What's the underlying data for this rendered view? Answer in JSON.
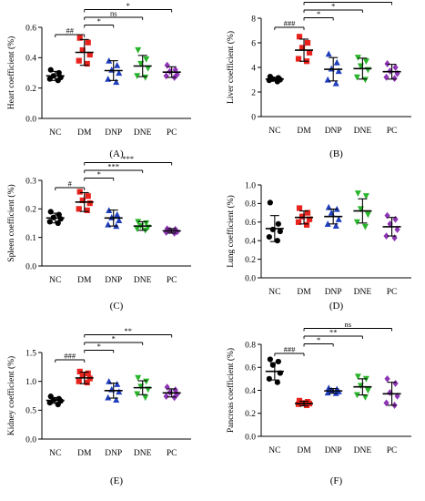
{
  "chart_data": [
    {
      "type": "scatter",
      "panel_label": "(A)",
      "ylabel": "Heart coefficient (%)",
      "ylim": [
        0.0,
        0.6
      ],
      "yticks": [
        "0.0",
        "0.2",
        "0.4",
        "0.6"
      ],
      "ytick_values": [
        0.0,
        0.2,
        0.4,
        0.6
      ],
      "categories": [
        "NC",
        "DM",
        "DNP",
        "DNE",
        "PC"
      ],
      "series": [
        {
          "category": "NC",
          "color": "#000000",
          "marker": "circle",
          "mean": 0.28,
          "sd": 0.03,
          "points": [
            0.32,
            0.3,
            0.28,
            0.27,
            0.26,
            0.25
          ]
        },
        {
          "category": "DM",
          "color": "#e8231d",
          "marker": "square",
          "mean": 0.435,
          "sd": 0.085,
          "points": [
            0.53,
            0.5,
            0.45,
            0.42,
            0.38,
            0.36
          ]
        },
        {
          "category": "DNP",
          "color": "#1f3fbf",
          "marker": "triangle-up",
          "mean": 0.315,
          "sd": 0.065,
          "points": [
            0.38,
            0.35,
            0.32,
            0.3,
            0.26,
            0.24
          ]
        },
        {
          "category": "DNE",
          "color": "#28b52a",
          "marker": "triangle-down",
          "mean": 0.345,
          "sd": 0.07,
          "points": [
            0.45,
            0.39,
            0.36,
            0.33,
            0.28,
            0.27
          ]
        },
        {
          "category": "PC",
          "color": "#8e35b5",
          "marker": "diamond",
          "mean": 0.305,
          "sd": 0.035,
          "points": [
            0.35,
            0.32,
            0.31,
            0.29,
            0.28,
            0.27
          ]
        }
      ],
      "significance": [
        {
          "from": "NC",
          "to": "DM",
          "label": "##"
        },
        {
          "from": "DM",
          "to": "DNP",
          "label": "*"
        },
        {
          "from": "DM",
          "to": "DNE",
          "label": "ns"
        },
        {
          "from": "DM",
          "to": "PC",
          "label": "*"
        }
      ]
    },
    {
      "type": "scatter",
      "panel_label": "(B)",
      "ylabel": "Liver coefficient (%)",
      "ylim": [
        0,
        8
      ],
      "yticks": [
        "0",
        "2",
        "4",
        "6",
        "8"
      ],
      "ytick_values": [
        0,
        2,
        4,
        6,
        8
      ],
      "categories": [
        "NC",
        "DM",
        "DNP",
        "DNE",
        "PC"
      ],
      "series": [
        {
          "category": "NC",
          "color": "#000000",
          "marker": "circle",
          "mean": 3.05,
          "sd": 0.15,
          "points": [
            3.25,
            3.15,
            3.05,
            3.0,
            2.95,
            2.85
          ]
        },
        {
          "category": "DM",
          "color": "#e8231d",
          "marker": "square",
          "mean": 5.4,
          "sd": 0.9,
          "points": [
            6.5,
            6.0,
            5.6,
            5.2,
            4.7,
            4.5
          ]
        },
        {
          "category": "DNP",
          "color": "#1f3fbf",
          "marker": "triangle-up",
          "mean": 3.85,
          "sd": 0.95,
          "points": [
            5.1,
            4.4,
            3.9,
            3.7,
            3.0,
            2.7
          ]
        },
        {
          "category": "DNE",
          "color": "#28b52a",
          "marker": "triangle-down",
          "mean": 3.9,
          "sd": 0.85,
          "points": [
            4.8,
            4.5,
            4.1,
            3.8,
            3.2,
            3.0
          ]
        },
        {
          "category": "PC",
          "color": "#8e35b5",
          "marker": "diamond",
          "mean": 3.65,
          "sd": 0.6,
          "points": [
            4.3,
            4.0,
            3.7,
            3.5,
            3.2,
            3.1
          ]
        }
      ],
      "significance": [
        {
          "from": "NC",
          "to": "DM",
          "label": "###"
        },
        {
          "from": "DM",
          "to": "DNP",
          "label": "*"
        },
        {
          "from": "DM",
          "to": "DNE",
          "label": "*"
        },
        {
          "from": "DM",
          "to": "PC",
          "label": "**"
        }
      ]
    },
    {
      "type": "scatter",
      "panel_label": "(C)",
      "ylabel": "Spleen coefficient (%)",
      "ylim": [
        0.0,
        0.3
      ],
      "yticks": [
        "0.0",
        "0.1",
        "0.2",
        "0.3"
      ],
      "ytick_values": [
        0.0,
        0.1,
        0.2,
        0.3
      ],
      "categories": [
        "NC",
        "DM",
        "DNP",
        "DNE",
        "PC"
      ],
      "series": [
        {
          "category": "NC",
          "color": "#000000",
          "marker": "circle",
          "mean": 0.168,
          "sd": 0.017,
          "points": [
            0.19,
            0.18,
            0.17,
            0.165,
            0.155,
            0.15
          ]
        },
        {
          "category": "DM",
          "color": "#e8231d",
          "marker": "square",
          "mean": 0.224,
          "sd": 0.033,
          "points": [
            0.26,
            0.245,
            0.23,
            0.22,
            0.2,
            0.195
          ]
        },
        {
          "category": "DNP",
          "color": "#1f3fbf",
          "marker": "triangle-up",
          "mean": 0.168,
          "sd": 0.028,
          "points": [
            0.195,
            0.18,
            0.17,
            0.16,
            0.145,
            0.14
          ]
        },
        {
          "category": "DNE",
          "color": "#28b52a",
          "marker": "triangle-down",
          "mean": 0.14,
          "sd": 0.015,
          "points": [
            0.155,
            0.15,
            0.14,
            0.135,
            0.13,
            0.125
          ]
        },
        {
          "category": "PC",
          "color": "#8e35b5",
          "marker": "diamond",
          "mean": 0.123,
          "sd": 0.008,
          "points": [
            0.13,
            0.128,
            0.125,
            0.12,
            0.118,
            0.115
          ]
        }
      ],
      "significance": [
        {
          "from": "NC",
          "to": "DM",
          "label": "#"
        },
        {
          "from": "DM",
          "to": "DNP",
          "label": "*"
        },
        {
          "from": "DM",
          "to": "DNE",
          "label": "***"
        },
        {
          "from": "DM",
          "to": "PC",
          "label": "***"
        }
      ]
    },
    {
      "type": "scatter",
      "panel_label": "(D)",
      "ylabel": "Lung coefficient (%)",
      "ylim": [
        0.0,
        1.0
      ],
      "yticks": [
        "0.0",
        "0.2",
        "0.4",
        "0.6",
        "0.8",
        "1.0"
      ],
      "ytick_values": [
        0.0,
        0.2,
        0.4,
        0.6,
        0.8,
        1.0
      ],
      "categories": [
        "NC",
        "DM",
        "DNP",
        "DNE",
        "PC"
      ],
      "series": [
        {
          "category": "NC",
          "color": "#000000",
          "marker": "circle",
          "mean": 0.53,
          "sd": 0.14,
          "points": [
            0.81,
            0.58,
            0.52,
            0.5,
            0.44,
            0.4
          ]
        },
        {
          "category": "DM",
          "color": "#e8231d",
          "marker": "square",
          "mean": 0.65,
          "sd": 0.07,
          "points": [
            0.75,
            0.7,
            0.66,
            0.63,
            0.6,
            0.57
          ]
        },
        {
          "category": "DNP",
          "color": "#1f3fbf",
          "marker": "triangle-up",
          "mean": 0.66,
          "sd": 0.08,
          "points": [
            0.76,
            0.74,
            0.7,
            0.63,
            0.58,
            0.56
          ]
        },
        {
          "category": "DNE",
          "color": "#28b52a",
          "marker": "triangle-down",
          "mean": 0.72,
          "sd": 0.13,
          "points": [
            0.91,
            0.88,
            0.74,
            0.68,
            0.6,
            0.55
          ]
        },
        {
          "category": "PC",
          "color": "#8e35b5",
          "marker": "diamond",
          "mean": 0.55,
          "sd": 0.1,
          "points": [
            0.67,
            0.63,
            0.58,
            0.52,
            0.45,
            0.43
          ]
        }
      ],
      "significance": []
    },
    {
      "type": "scatter",
      "panel_label": "(E)",
      "ylabel": "Kidney coefficient (%)",
      "ylim": [
        0.0,
        1.5
      ],
      "yticks": [
        "0.0",
        "0.5",
        "1.0",
        "1.5"
      ],
      "ytick_values": [
        0.0,
        0.5,
        1.0,
        1.5
      ],
      "categories": [
        "NC",
        "DM",
        "DNP",
        "DNE",
        "PC"
      ],
      "series": [
        {
          "category": "NC",
          "color": "#000000",
          "marker": "circle",
          "mean": 0.67,
          "sd": 0.05,
          "points": [
            0.74,
            0.7,
            0.68,
            0.66,
            0.63,
            0.6
          ]
        },
        {
          "category": "DM",
          "color": "#e8231d",
          "marker": "square",
          "mean": 1.06,
          "sd": 0.1,
          "points": [
            1.17,
            1.14,
            1.1,
            1.05,
            1.0,
            0.98
          ]
        },
        {
          "category": "DNP",
          "color": "#1f3fbf",
          "marker": "triangle-up",
          "mean": 0.84,
          "sd": 0.13,
          "points": [
            1.0,
            0.95,
            0.86,
            0.82,
            0.72,
            0.68
          ]
        },
        {
          "category": "DNE",
          "color": "#28b52a",
          "marker": "triangle-down",
          "mean": 0.89,
          "sd": 0.12,
          "points": [
            1.06,
            1.0,
            0.91,
            0.86,
            0.78,
            0.72
          ]
        },
        {
          "category": "PC",
          "color": "#8e35b5",
          "marker": "diamond",
          "mean": 0.8,
          "sd": 0.07,
          "points": [
            0.9,
            0.85,
            0.81,
            0.78,
            0.74,
            0.72
          ]
        }
      ],
      "significance": [
        {
          "from": "NC",
          "to": "DM",
          "label": "###"
        },
        {
          "from": "DM",
          "to": "DNP",
          "label": "*"
        },
        {
          "from": "DM",
          "to": "DNE",
          "label": "*"
        },
        {
          "from": "DM",
          "to": "PC",
          "label": "**"
        }
      ]
    },
    {
      "type": "scatter",
      "panel_label": "(F)",
      "ylabel": "Pancreas coefficient (%)",
      "ylim": [
        0.0,
        0.8
      ],
      "yticks": [
        "0.0",
        "0.2",
        "0.4",
        "0.6",
        "0.8"
      ],
      "ytick_values": [
        0.0,
        0.2,
        0.4,
        0.6,
        0.8
      ],
      "categories": [
        "NC",
        "DM",
        "DNP",
        "DNE",
        "PC"
      ],
      "series": [
        {
          "category": "NC",
          "color": "#000000",
          "marker": "circle",
          "mean": 0.565,
          "sd": 0.075,
          "points": [
            0.67,
            0.65,
            0.62,
            0.55,
            0.5,
            0.47
          ]
        },
        {
          "category": "DM",
          "color": "#e8231d",
          "marker": "square",
          "mean": 0.285,
          "sd": 0.02,
          "points": [
            0.31,
            0.3,
            0.29,
            0.285,
            0.28,
            0.27
          ]
        },
        {
          "category": "DNP",
          "color": "#1f3fbf",
          "marker": "triangle-up",
          "mean": 0.395,
          "sd": 0.02,
          "points": [
            0.42,
            0.41,
            0.4,
            0.39,
            0.38,
            0.375
          ]
        },
        {
          "category": "DNE",
          "color": "#28b52a",
          "marker": "triangle-down",
          "mean": 0.43,
          "sd": 0.07,
          "points": [
            0.52,
            0.5,
            0.44,
            0.4,
            0.36,
            0.34
          ]
        },
        {
          "category": "PC",
          "color": "#8e35b5",
          "marker": "diamond",
          "mean": 0.37,
          "sd": 0.1,
          "points": [
            0.5,
            0.46,
            0.38,
            0.35,
            0.29,
            0.27
          ]
        }
      ],
      "significance": [
        {
          "from": "NC",
          "to": "DM",
          "label": "###"
        },
        {
          "from": "DM",
          "to": "DNP",
          "label": "*"
        },
        {
          "from": "DM",
          "to": "DNE",
          "label": "**"
        },
        {
          "from": "DM",
          "to": "PC",
          "label": "ns"
        }
      ]
    }
  ]
}
